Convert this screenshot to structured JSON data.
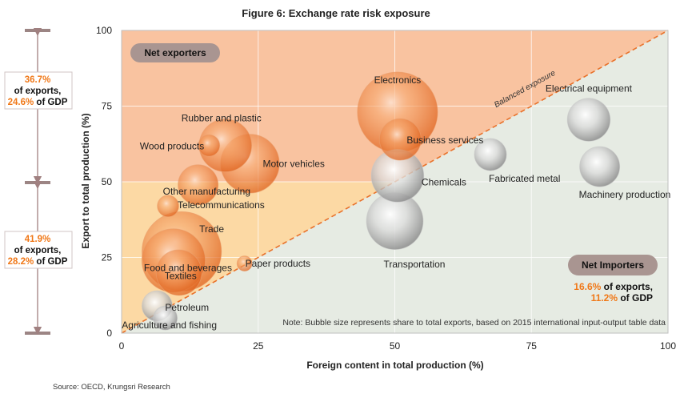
{
  "chart_data": {
    "type": "scatter",
    "title": "Figure 6: Exchange rate risk exposure",
    "xlabel": "Foreign content in total production (%)",
    "ylabel": "Export to total production (%)",
    "xlim": [
      0,
      100
    ],
    "ylim": [
      0,
      100
    ],
    "xticks": [
      0,
      25,
      50,
      75,
      100
    ],
    "yticks": [
      0,
      25,
      50,
      75,
      100
    ],
    "grid": true,
    "regions": {
      "exporters_label": "Net exporters",
      "importers_label": "Net Importers",
      "diagonal_label": "Balanced exposure",
      "exporter_color": "#f9c3a0",
      "importer_color": "#e6ebe3",
      "highlight_color": "#fcd9a4"
    },
    "importers_note": {
      "pct1": "16.6%",
      "text1": " of exports,",
      "pct2": "11.2%",
      "text2": " of GDP"
    },
    "note": "Note: Bubble size represents share to total exports, based on 2015 international input-output table data",
    "points": [
      {
        "name": "Electronics",
        "x": 50.5,
        "y": 73,
        "size": 5.6,
        "color": "orange"
      },
      {
        "name": "Electrical equipment",
        "x": 85.5,
        "y": 70.5,
        "size": 1.6,
        "color": "grey"
      },
      {
        "name": "Business services",
        "x": 51,
        "y": 64,
        "size": 1.5,
        "color": "orange"
      },
      {
        "name": "Rubber and plastic",
        "x": 19,
        "y": 62,
        "size": 2.4,
        "color": "orange"
      },
      {
        "name": "Wood products",
        "x": 16,
        "y": 62,
        "size": 0.4,
        "color": "orange"
      },
      {
        "name": "Motor vehicles",
        "x": 23.5,
        "y": 56,
        "size": 3.0,
        "color": "orange"
      },
      {
        "name": "Fabricated metal",
        "x": 67.5,
        "y": 59,
        "size": 0.9,
        "color": "grey"
      },
      {
        "name": "Machinery production",
        "x": 87.5,
        "y": 55,
        "size": 1.4,
        "color": "grey"
      },
      {
        "name": "Chemicals",
        "x": 50.5,
        "y": 52,
        "size": 2.4,
        "color": "grey"
      },
      {
        "name": "Other manufacturing",
        "x": 14,
        "y": 49,
        "size": 1.4,
        "color": "orange"
      },
      {
        "name": "Telecommunications",
        "x": 8.5,
        "y": 42,
        "size": 0.4,
        "color": "orange"
      },
      {
        "name": "Trade",
        "x": 11,
        "y": 27,
        "size": 5.5,
        "color": "orange"
      },
      {
        "name": "Food and beverages",
        "x": 9.5,
        "y": 24,
        "size": 3.5,
        "color": "orange"
      },
      {
        "name": "Paper products",
        "x": 22.5,
        "y": 23,
        "size": 0.2,
        "color": "orange"
      },
      {
        "name": "Transportation",
        "x": 50,
        "y": 37,
        "size": 2.8,
        "color": "grey"
      },
      {
        "name": "Textiles",
        "x": 10.5,
        "y": 20,
        "size": 1.8,
        "color": "orange"
      },
      {
        "name": "Petroleum",
        "x": 6.5,
        "y": 9,
        "size": 0.8,
        "color": "grey"
      },
      {
        "name": "Agriculture and fishing",
        "x": 8,
        "y": 5,
        "size": 0.5,
        "color": "grey"
      }
    ]
  },
  "left_panel": {
    "upper": {
      "pct1": "36.7%",
      "text1": "of exports,",
      "pct2": "24.6%",
      "text2": " of GDP"
    },
    "lower": {
      "pct1": "41.9%",
      "text1": "of exports,",
      "pct2": "28.2%",
      "text2": " of GDP"
    }
  },
  "source": "Source: OECD, Krungsri Research"
}
